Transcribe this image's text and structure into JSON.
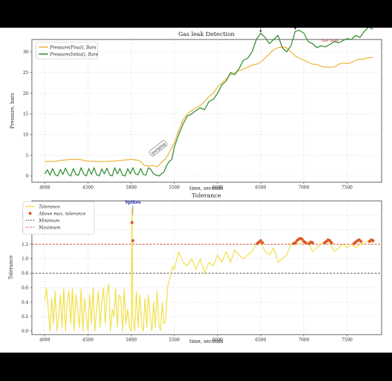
{
  "colors": {
    "final": "#f0b33c",
    "initial": "#2e8b2e",
    "tolerance": "#f2e14a",
    "above": "#e0562a",
    "maximum_line": "#d93a2a",
    "minimum_line": "#444444",
    "annotation_red": "#c0392b",
    "spikes_blue": "#1a2fb0"
  },
  "chart_data": [
    {
      "type": "line",
      "title": "Gas leak Detection",
      "xlabel": "time, seconds",
      "ylabel": "Pressure, bars",
      "xlim": [
        3850,
        7900
      ],
      "ylim": [
        -1.5,
        33
      ],
      "xticks": [
        "4000",
        "4500",
        "5000",
        "5500",
        "6000",
        "6500",
        "7000",
        "7500"
      ],
      "yticks": [
        "0",
        "5",
        "10",
        "15",
        "20",
        "25",
        "30"
      ],
      "grid": true,
      "legend_position": "top-left",
      "series": [
        {
          "name": "Pressure(Final), Bars",
          "color_key": "final",
          "x": [
            4000,
            4100,
            4200,
            4300,
            4400,
            4500,
            4600,
            4700,
            4800,
            4900,
            5000,
            5050,
            5100,
            5150,
            5200,
            5250,
            5300,
            5350,
            5400,
            5450,
            5500,
            5550,
            5600,
            5650,
            5700,
            5750,
            5800,
            5850,
            5900,
            5950,
            6000,
            6050,
            6100,
            6150,
            6200,
            6250,
            6300,
            6350,
            6400,
            6450,
            6500,
            6550,
            6600,
            6650,
            6700,
            6750,
            6800,
            6850,
            6900,
            6950,
            7000,
            7050,
            7100,
            7150,
            7200,
            7250,
            7300,
            7350,
            7400,
            7450,
            7500,
            7550,
            7600,
            7650,
            7700,
            7750,
            7800
          ],
          "y": [
            3.5,
            3.5,
            3.8,
            4,
            4,
            3.6,
            3.5,
            3.5,
            3.6,
            3.8,
            4,
            3.9,
            3.7,
            2.6,
            2.4,
            2.5,
            2.2,
            3.2,
            4.2,
            6,
            8,
            11,
            13.5,
            15,
            15.8,
            16.5,
            17,
            18,
            19.2,
            20,
            21.5,
            22.5,
            23.5,
            24.5,
            25,
            25.5,
            25.8,
            26.3,
            26.8,
            27,
            27.5,
            28.5,
            29.5,
            30.5,
            31,
            31.2,
            31,
            30,
            29,
            28.5,
            28,
            27.5,
            27,
            27,
            26.5,
            26.3,
            26.3,
            26.3,
            27,
            27.3,
            27.2,
            27.4,
            28,
            28.2,
            28.3,
            28.6,
            28.7
          ]
        },
        {
          "name": "Pressure(Initial), Bars",
          "color_key": "initial",
          "x": [
            4000,
            4030,
            4060,
            4090,
            4120,
            4150,
            4180,
            4210,
            4240,
            4270,
            4300,
            4330,
            4360,
            4390,
            4420,
            4450,
            4480,
            4510,
            4540,
            4570,
            4600,
            4630,
            4660,
            4690,
            4720,
            4750,
            4780,
            4810,
            4840,
            4870,
            4900,
            4930,
            4960,
            4990,
            5020,
            5050,
            5080,
            5110,
            5140,
            5170,
            5200,
            5230,
            5260,
            5290,
            5320,
            5350,
            5380,
            5410,
            5440,
            5470,
            5500,
            5550,
            5600,
            5650,
            5700,
            5750,
            5800,
            5850,
            5900,
            5950,
            6000,
            6050,
            6100,
            6150,
            6200,
            6250,
            6300,
            6350,
            6400,
            6450,
            6500,
            6550,
            6600,
            6650,
            6700,
            6750,
            6800,
            6850,
            6900,
            6950,
            7000,
            7050,
            7100,
            7150,
            7200,
            7250,
            7300,
            7350,
            7400,
            7450,
            7500,
            7550,
            7600,
            7650,
            7700,
            7750,
            7800
          ],
          "y": [
            0.5,
            1.5,
            0.2,
            1.8,
            0.3,
            0,
            1.6,
            0.4,
            1.9,
            0.5,
            0,
            1.8,
            0.3,
            0.2,
            2,
            0.5,
            0,
            1.8,
            0.4,
            2,
            0.3,
            0,
            1.7,
            0.5,
            1.9,
            0.3,
            0,
            2,
            0.5,
            1.8,
            0.2,
            0,
            1.8,
            0.5,
            2,
            0.5,
            0.3,
            1.8,
            0.4,
            0.2,
            2,
            1.5,
            0.5,
            0.2,
            0,
            0.5,
            1,
            2.5,
            3.5,
            4,
            7,
            10,
            12.5,
            14.5,
            15,
            15.8,
            16.5,
            16,
            18,
            18.5,
            20,
            22,
            23,
            25,
            24.5,
            26,
            28,
            28.5,
            30,
            33,
            34.5,
            33.5,
            32,
            33,
            34,
            31,
            30,
            31.5,
            35,
            35.2,
            34.5,
            32.5,
            32,
            31,
            31.5,
            31.2,
            31.8,
            32.5,
            32.2,
            32.7,
            33.2,
            33,
            34,
            33.5,
            35,
            36,
            35.5
          ]
        }
      ],
      "annotations": [
        {
          "text": "purging",
          "x": 5320,
          "y": 6.5
        },
        {
          "text": "lifting",
          "x": 6500,
          "y": 34.5
        },
        {
          "text": "lifting",
          "x": 6900,
          "y": 35.2
        },
        {
          "text": "Gas leak",
          "x": 7300,
          "y": 32.5
        }
      ]
    },
    {
      "type": "line",
      "title": "Tolerance",
      "xlabel": "time, seconds",
      "ylabel": "Tolerance",
      "xlim": [
        3850,
        7900
      ],
      "ylim": [
        -0.05,
        1.8
      ],
      "xticks": [
        "4000",
        "4500",
        "5000",
        "5500",
        "6000",
        "6500",
        "7000",
        "7500"
      ],
      "yticks": [
        "0.0",
        "0.2",
        "0.4",
        "0.6",
        "0.8",
        "1.0",
        "1.2",
        "1.4",
        "1.6"
      ],
      "grid": true,
      "legend_position": "top-left",
      "minimum": 0.8,
      "maximum": 1.2,
      "series": [
        {
          "name": "Tolerance",
          "color_key": "tolerance",
          "x": [
            4000,
            4020,
            4040,
            4060,
            4080,
            4100,
            4120,
            4140,
            4160,
            4180,
            4200,
            4220,
            4240,
            4260,
            4280,
            4300,
            4320,
            4340,
            4360,
            4380,
            4400,
            4420,
            4440,
            4460,
            4480,
            4500,
            4520,
            4540,
            4560,
            4580,
            4600,
            4620,
            4640,
            4660,
            4680,
            4700,
            4720,
            4740,
            4760,
            4780,
            4800,
            4820,
            4840,
            4860,
            4880,
            4900,
            4920,
            4940,
            4960,
            4980,
            5000,
            5010,
            5020,
            5040,
            5060,
            5080,
            5100,
            5120,
            5140,
            5160,
            5180,
            5200,
            5220,
            5240,
            5260,
            5280,
            5300,
            5320,
            5340,
            5360,
            5380,
            5400,
            5420,
            5440,
            5460,
            5480,
            5500,
            5550,
            5600,
            5650,
            5700,
            5750,
            5800,
            5850,
            5900,
            5950,
            6000,
            6050,
            6100,
            6150,
            6200,
            6250,
            6300,
            6350,
            6400,
            6450,
            6500,
            6550,
            6600,
            6650,
            6700,
            6750,
            6800,
            6850,
            6900,
            6950,
            7000,
            7050,
            7100,
            7150,
            7200,
            7250,
            7300,
            7350,
            7400,
            7450,
            7500,
            7550,
            7600,
            7650,
            7700,
            7750,
            7800
          ],
          "y": [
            0.42,
            0.6,
            0.3,
            0,
            0.45,
            0.1,
            0.55,
            0,
            0.2,
            0.5,
            0.05,
            0.6,
            0,
            0.4,
            0.55,
            0.1,
            0.6,
            0,
            0.5,
            0.3,
            0.05,
            0.58,
            0,
            0.45,
            0.2,
            0,
            0.5,
            0.1,
            0.6,
            0,
            0.3,
            0.55,
            0.05,
            0.4,
            0.6,
            0.1,
            0.5,
            0.65,
            0,
            0.3,
            0.2,
            0.6,
            0.05,
            0.5,
            0.45,
            0,
            0.58,
            0.1,
            0.3,
            0.05,
            0,
            1.7,
            0.2,
            0,
            0.55,
            0.05,
            0.5,
            0.1,
            0,
            0.45,
            0.05,
            0.5,
            0.2,
            0,
            0.4,
            0.05,
            0.55,
            0.1,
            0,
            0.4,
            0.1,
            0.15,
            0.6,
            0.7,
            0.8,
            0.9,
            0.85,
            1.1,
            0.95,
            0.9,
            1,
            0.85,
            1,
            0.8,
            0.95,
            0.9,
            1.05,
            0.95,
            1.1,
            0.95,
            1.12,
            1.05,
            1,
            1.05,
            1.1,
            1.2,
            1.22,
            1.1,
            1.05,
            1.15,
            0.95,
            1,
            1.05,
            1.2,
            1.23,
            1.2,
            1.25,
            1.22,
            1.1,
            1.15,
            1.2,
            1.25,
            1.22,
            1.1,
            1.15,
            1.2,
            1.15,
            1.2,
            1.15,
            1.2,
            1.22,
            1.25,
            1.22
          ]
        },
        {
          "name": "Above max. tolerance",
          "color_key": "above",
          "marker": "dot",
          "x": [
            5010,
            5020,
            6460,
            6480,
            6500,
            6520,
            6880,
            6900,
            6920,
            6940,
            6960,
            6980,
            7000,
            7020,
            7060,
            7080,
            7100,
            7240,
            7260,
            7280,
            7300,
            7320,
            7580,
            7600,
            7620,
            7640,
            7660,
            7760,
            7780,
            7800
          ],
          "y": [
            1.5,
            1.25,
            1.21,
            1.23,
            1.25,
            1.22,
            1.21,
            1.22,
            1.25,
            1.27,
            1.28,
            1.27,
            1.24,
            1.22,
            1.21,
            1.23,
            1.22,
            1.22,
            1.24,
            1.26,
            1.25,
            1.22,
            1.21,
            1.23,
            1.25,
            1.26,
            1.24,
            1.24,
            1.26,
            1.25
          ]
        },
        {
          "name": "Minimum",
          "color_key": "minimum_line",
          "style": "dashed"
        },
        {
          "name": "Maximum",
          "color_key": "maximum_line",
          "style": "dashed"
        }
      ],
      "annotations": [
        {
          "text": "Spikes",
          "x": 5020,
          "y": 1.75
        }
      ]
    }
  ]
}
